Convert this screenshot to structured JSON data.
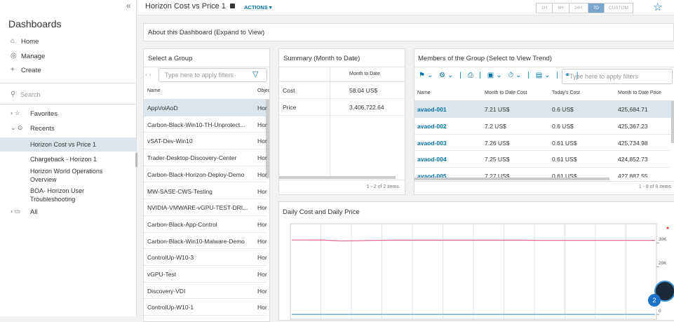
{
  "sidebar": {
    "title": "Dashboards",
    "nav": [
      "Home",
      "Manage",
      "Create"
    ],
    "search_placeholder": "Search",
    "tree": {
      "favorites": "Favorites",
      "recents": "Recents",
      "recent_items": [
        "Horizon Cost vs Price 1",
        "Chargeback - Horizon 1",
        "Horizon World Operations Overview",
        "BOA- Horizon User Troubleshooting"
      ],
      "selected_item": 0,
      "all": "All"
    }
  },
  "header": {
    "title": "Horizon Cost vs Price 1",
    "actions": "ACTIONS",
    "time_ranges": [
      "1H",
      "6H",
      "24H",
      "7D",
      "CUSTOM"
    ],
    "selected_range": 3
  },
  "about": "About this Dashboard (Expand to View)",
  "group_panel": {
    "title": "Select a Group",
    "filter_placeholder": "Type here to apply filters",
    "columns": [
      "Name",
      "Objec"
    ],
    "rows": [
      [
        "AppVolAoD",
        "Hor"
      ],
      [
        "Carbon-Black-Win10-TH-Unprotect...",
        "Hor"
      ],
      [
        "vSAT-Dev-Win10",
        "Hor"
      ],
      [
        "Trader-Desktop-Discovery-Center",
        "Hor"
      ],
      [
        "Carbon-Black-Horizon-Deploy-Demo",
        "Hor"
      ],
      [
        "MW-SASE-CWS-Testing",
        "Hor"
      ],
      [
        "NVIDIA-VMWARE-vGPU-TEST-DRI...",
        "Hor"
      ],
      [
        "Carbon-Black-App-Control",
        "Hor"
      ],
      [
        "Carbon-Black-Win10-Malware-Demo",
        "Hor"
      ],
      [
        "ControlUp-W10-3",
        "Hor"
      ],
      [
        "vGPU-Test",
        "Hor"
      ],
      [
        "Discovery-VDI",
        "Hor"
      ],
      [
        "ControlUp-W10-1",
        "Hor"
      ]
    ],
    "selected_row": 0
  },
  "summary_panel": {
    "title": "Summary (Month to Date)",
    "column": "Month to Date",
    "rows": [
      [
        "Cost",
        "58.04 US$"
      ],
      [
        "Price",
        "3,406,722.64"
      ]
    ],
    "footer": "1 - 2 of 2 items"
  },
  "members_panel": {
    "title": "Members of the Group (Select to View Trend)",
    "filter_placeholder": "Type here to apply filters",
    "columns": [
      "Name",
      "Month to Date Cost",
      "Today's Cost",
      "Month to Date Price"
    ],
    "rows": [
      [
        "avaod-001",
        "7.21 US$",
        "0.6 US$",
        "425,684.71"
      ],
      [
        "avaod-002",
        "7.2 US$",
        "0.6 US$",
        "425,367.23"
      ],
      [
        "avaod-003",
        "7.26 US$",
        "0.61 US$",
        "425,734.98"
      ],
      [
        "avaod-004",
        "7.25 US$",
        "0.61 US$",
        "424,852.73"
      ],
      [
        "avaod-005",
        "7.27 US$",
        "0.61 US$",
        "427,887.55"
      ]
    ],
    "selected_row": 0,
    "footer": "1 - 8 of 8 items"
  },
  "chart_panel": {
    "title": "Daily Cost and Daily Price",
    "chart": {
      "type": "line",
      "ylim": [
        -2000,
        38000
      ],
      "yticks": [
        {
          "value": 30000,
          "label": "30K"
        },
        {
          "value": 20000,
          "label": "20K"
        },
        0
      ],
      "series": [
        {
          "color": "#e0709f",
          "values": [
            31200,
            31200,
            31150,
            30800,
            30900,
            31050,
            31100,
            31100,
            31100,
            31100,
            31100,
            31100,
            31100,
            31100,
            31100,
            31050,
            31050,
            31050,
            31050,
            31050,
            31050,
            31050,
            31050
          ]
        },
        {
          "color": "#6aa6d8",
          "values": [
            2,
            2,
            2,
            2,
            2,
            2,
            2,
            2,
            2,
            2,
            2,
            2,
            2,
            2,
            2,
            2,
            2,
            2,
            2,
            2,
            2,
            2,
            2
          ]
        }
      ]
    }
  }
}
